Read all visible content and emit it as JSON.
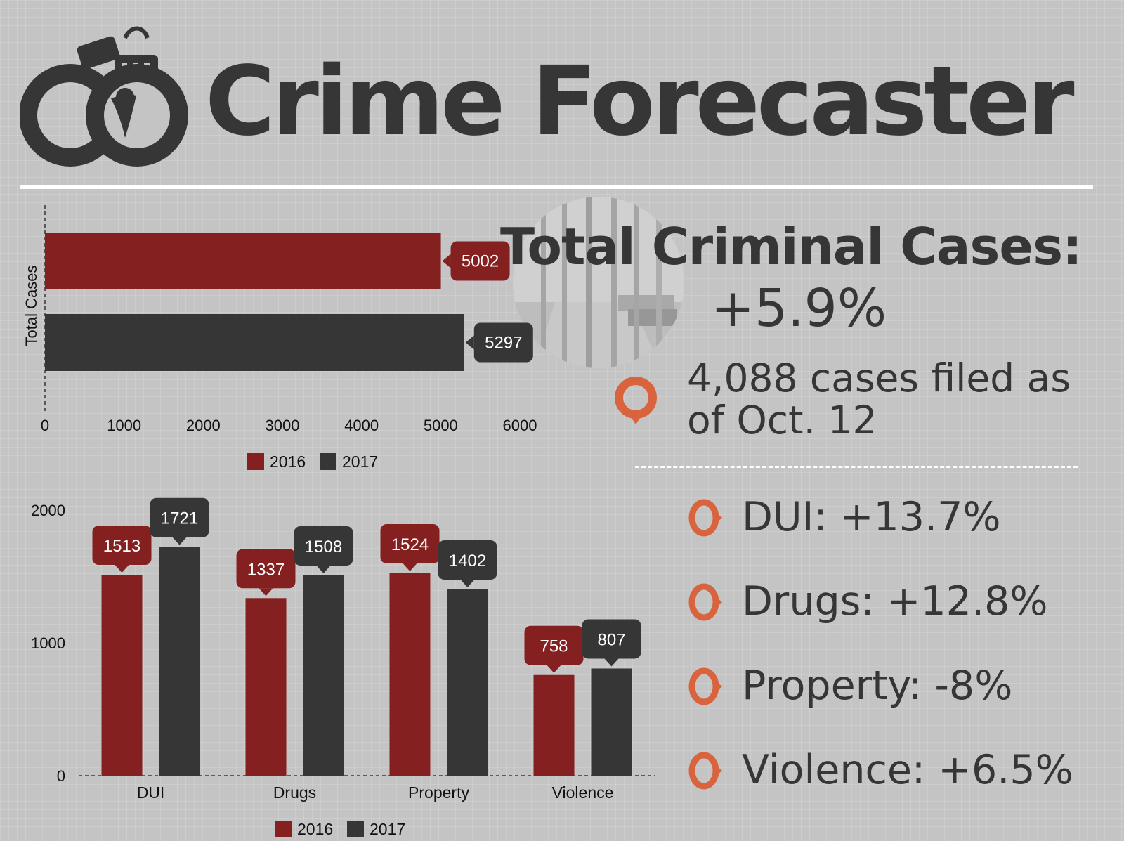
{
  "header": {
    "title": "Crime Forecaster",
    "logo_icon": "handcuffs-icon"
  },
  "summary": {
    "title": "Total Criminal Cases:",
    "change": "+5.9%",
    "filed_text": "4,088 cases filed as of Oct. 12",
    "photo_icon": "jail-cell-photo",
    "pin_icon": "map-pin-icon"
  },
  "category_changes": [
    {
      "label": "DUI: +13.7%",
      "icon": "ring-icon"
    },
    {
      "label": "Drugs: +12.8%",
      "icon": "ring-icon"
    },
    {
      "label": "Property: -8%",
      "icon": "ring-icon"
    },
    {
      "label": "Violence: +6.5%",
      "icon": "ring-icon"
    }
  ],
  "colors": {
    "series_2016": "#842020",
    "series_2017": "#363636",
    "accent": "#d9633d",
    "text": "#363636",
    "background": "#c4c4c4"
  },
  "chart_data": [
    {
      "type": "bar",
      "orientation": "horizontal",
      "categories": [
        "Total Cases"
      ],
      "series": [
        {
          "name": "2016",
          "values": [
            5002
          ]
        },
        {
          "name": "2017",
          "values": [
            5297
          ]
        }
      ],
      "xlim": [
        0,
        6000
      ],
      "x_ticks": [
        0,
        1000,
        2000,
        3000,
        4000,
        5000,
        6000
      ],
      "ylabel": "Total Cases",
      "data_labels": true,
      "legend": "bottom",
      "grid": false
    },
    {
      "type": "bar",
      "orientation": "vertical",
      "categories": [
        "DUI",
        "Drugs",
        "Property",
        "Violence"
      ],
      "series": [
        {
          "name": "2016",
          "values": [
            1513,
            1337,
            1524,
            758
          ]
        },
        {
          "name": "2017",
          "values": [
            1721,
            1508,
            1402,
            807
          ]
        }
      ],
      "ylim": [
        0,
        2000
      ],
      "y_ticks": [
        0,
        1000,
        2000
      ],
      "data_labels": true,
      "legend": "bottom",
      "grid": false
    }
  ]
}
